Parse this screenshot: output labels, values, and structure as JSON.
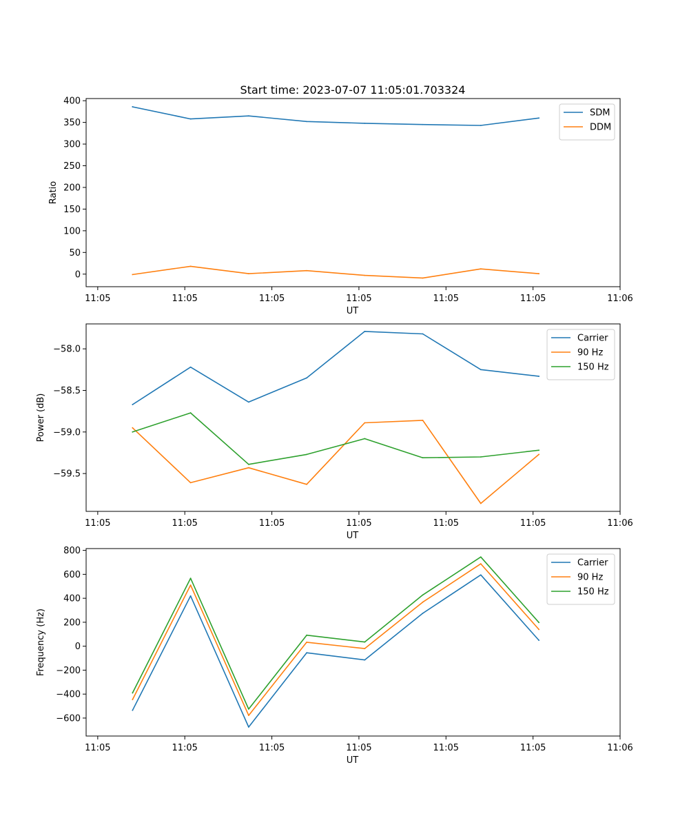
{
  "figure_title": "Start time: 2023-07-07 11:05:01.703324",
  "chart_data": [
    {
      "type": "line",
      "title": "Start time: 2023-07-07 11:05:01.703324",
      "xlabel": "UT",
      "ylabel": "Ratio",
      "x": [
        1,
        2,
        3,
        4,
        5,
        6,
        7,
        8
      ],
      "xlim": [
        0.2,
        9.4
      ],
      "ylim": [
        -29,
        405
      ],
      "xticks": [
        0.4,
        1.9,
        3.4,
        4.9,
        6.4,
        7.9,
        9.4
      ],
      "xtick_labels": [
        "11:05",
        "11:05",
        "11:05",
        "11:05",
        "11:05",
        "11:05",
        "11:06"
      ],
      "yticks": [
        0,
        50,
        100,
        150,
        200,
        250,
        300,
        350,
        400
      ],
      "ytick_labels": [
        "0",
        "50",
        "100",
        "150",
        "200",
        "250",
        "300",
        "350",
        "400"
      ],
      "legend_position": "top-right",
      "series": [
        {
          "name": "SDM",
          "color": "#1f77b4",
          "values": [
            386,
            358,
            365,
            352,
            348,
            345,
            343,
            360
          ]
        },
        {
          "name": "DDM",
          "color": "#ff7f0e",
          "values": [
            -1,
            18,
            1,
            8,
            -3,
            -9,
            12,
            1
          ]
        }
      ]
    },
    {
      "type": "line",
      "title": "",
      "xlabel": "UT",
      "ylabel": "Power (dB)",
      "x": [
        1,
        2,
        3,
        4,
        5,
        6,
        7,
        8
      ],
      "xlim": [
        0.2,
        9.4
      ],
      "ylim": [
        -59.955,
        -57.7
      ],
      "xticks": [
        0.4,
        1.9,
        3.4,
        4.9,
        6.4,
        7.9,
        9.4
      ],
      "xtick_labels": [
        "11:05",
        "11:05",
        "11:05",
        "11:05",
        "11:05",
        "11:05",
        "11:06"
      ],
      "yticks": [
        -59.5,
        -59.0,
        -58.5,
        -58.0
      ],
      "ytick_labels": [
        "−59.5",
        "−59.0",
        "−58.5",
        "−58.0"
      ],
      "legend_position": "top-right",
      "series": [
        {
          "name": "Carrier",
          "color": "#1f77b4",
          "values": [
            -58.67,
            -58.22,
            -58.64,
            -58.35,
            -57.79,
            -57.82,
            -58.25,
            -58.33
          ]
        },
        {
          "name": "90 Hz",
          "color": "#ff7f0e",
          "values": [
            -58.95,
            -59.61,
            -59.43,
            -59.63,
            -58.89,
            -58.86,
            -59.86,
            -59.27
          ]
        },
        {
          "name": "150 Hz",
          "color": "#2ca02c",
          "values": [
            -59.0,
            -58.77,
            -59.39,
            -59.27,
            -59.08,
            -59.31,
            -59.3,
            -59.22
          ]
        }
      ]
    },
    {
      "type": "line",
      "title": "",
      "xlabel": "UT",
      "ylabel": "Frequency (Hz)",
      "x": [
        1,
        2,
        3,
        4,
        5,
        6,
        7,
        8
      ],
      "xlim": [
        0.2,
        9.4
      ],
      "ylim": [
        -750,
        815
      ],
      "xticks": [
        0.4,
        1.9,
        3.4,
        4.9,
        6.4,
        7.9,
        9.4
      ],
      "xtick_labels": [
        "11:05",
        "11:05",
        "11:05",
        "11:05",
        "11:05",
        "11:05",
        "11:06"
      ],
      "yticks": [
        -600,
        -400,
        -200,
        0,
        200,
        400,
        600,
        800
      ],
      "ytick_labels": [
        "−600",
        "−400",
        "−200",
        "0",
        "200",
        "400",
        "600",
        "800"
      ],
      "legend_position": "top-right",
      "series": [
        {
          "name": "Carrier",
          "color": "#1f77b4",
          "values": [
            -535,
            420,
            -675,
            -55,
            -115,
            275,
            595,
            50
          ]
        },
        {
          "name": "90 Hz",
          "color": "#ff7f0e",
          "values": [
            -445,
            510,
            -578,
            33,
            -20,
            368,
            688,
            140
          ]
        },
        {
          "name": "150 Hz",
          "color": "#2ca02c",
          "values": [
            -390,
            567,
            -525,
            92,
            35,
            428,
            745,
            198
          ]
        }
      ]
    }
  ]
}
